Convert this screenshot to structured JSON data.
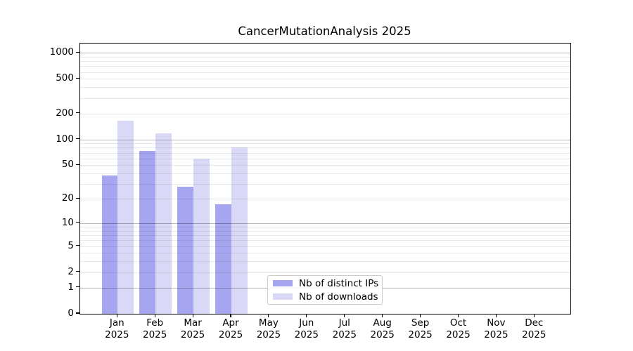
{
  "title": "CancerMutationAnalysis 2025",
  "chart_data": {
    "type": "bar",
    "title": "CancerMutationAnalysis 2025",
    "categories": [
      "Jan 2025",
      "Feb 2025",
      "Mar 2025",
      "Apr 2025",
      "May 2025",
      "Jun 2025",
      "Jul 2025",
      "Aug 2025",
      "Sep 2025",
      "Oct 2025",
      "Nov 2025",
      "Dec 2025"
    ],
    "series": [
      {
        "name": "Nb of distinct IPs",
        "color": "#a6a6f0",
        "values": [
          38,
          74,
          28,
          17,
          0,
          0,
          0,
          0,
          0,
          0,
          0,
          0
        ]
      },
      {
        "name": "Nb of downloads",
        "color": "#d9d9f7",
        "values": [
          165,
          117,
          60,
          80,
          0,
          0,
          0,
          0,
          0,
          0,
          0,
          0
        ]
      }
    ],
    "xlabel": "",
    "ylabel": "",
    "yscale": "log1p",
    "ylim": [
      0,
      1275
    ],
    "ytick_values": [
      0,
      1,
      2,
      5,
      10,
      20,
      50,
      100,
      200,
      500,
      1000
    ],
    "major_grid_values": [
      1,
      10,
      100,
      1000
    ],
    "minor_grid_values": [
      2,
      3,
      4,
      5,
      6,
      7,
      8,
      9,
      20,
      30,
      40,
      50,
      60,
      70,
      80,
      90,
      200,
      300,
      400,
      500,
      600,
      700,
      800,
      900
    ],
    "grid": "horizontal gridlines drawn over bars",
    "legend_position": "inside lower-center-left"
  },
  "legend": {
    "items": [
      {
        "label": "Nb of distinct IPs",
        "color": "#a6a6f0"
      },
      {
        "label": "Nb of downloads",
        "color": "#d9d9f7"
      }
    ]
  },
  "colors": {
    "background": "#ffffff",
    "spine": "#000000",
    "grid_major": "rgba(0,0,0,0.28)",
    "grid_minor": "rgba(0,0,0,0.085)",
    "legend_border": "#cccccc",
    "text": "#000000"
  }
}
